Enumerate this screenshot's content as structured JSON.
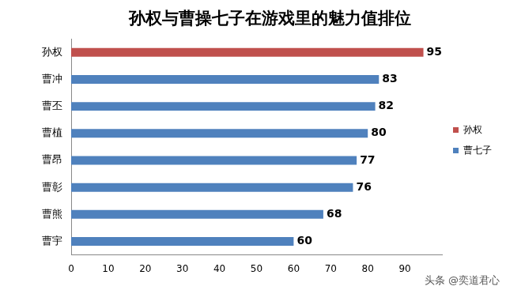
{
  "chart_data": {
    "type": "bar",
    "orientation": "horizontal",
    "title": "孙权与曹操七子在游戏里的魅力值排位",
    "categories": [
      "孙权",
      "曹冲",
      "曹丕",
      "曹植",
      "曹昂",
      "曹彰",
      "曹熊",
      "曹宇"
    ],
    "series": [
      {
        "name": "孙权",
        "color": "#c0504d",
        "values": [
          95,
          null,
          null,
          null,
          null,
          null,
          null,
          null
        ]
      },
      {
        "name": "曹七子",
        "color": "#4f81bd",
        "values": [
          null,
          83,
          82,
          80,
          77,
          76,
          68,
          60
        ]
      }
    ],
    "xlim": [
      0,
      100
    ],
    "xticks": [
      0,
      10,
      20,
      30,
      40,
      50,
      60,
      70,
      80,
      90
    ],
    "grid": false,
    "legend": "right",
    "data_labels": true,
    "annotations": [
      "头条 @奕道君心"
    ]
  }
}
